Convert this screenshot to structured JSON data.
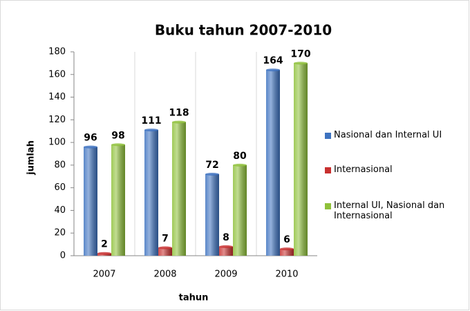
{
  "chart_data": {
    "type": "bar",
    "title": "Buku tahun 2007-2010",
    "x_label": "tahun",
    "y_label": "jumlah",
    "categories": [
      "2007",
      "2008",
      "2009",
      "2010"
    ],
    "series": [
      {
        "name": "Nasional dan Internal UI",
        "color": "#3d72c0",
        "values": [
          96,
          111,
          72,
          164
        ]
      },
      {
        "name": "Internasional",
        "color": "#c8302f",
        "values": [
          2,
          7,
          8,
          6
        ]
      },
      {
        "name": "Internal UI, Nasional dan Internasional",
        "color": "#8fc13a",
        "values": [
          98,
          118,
          80,
          170
        ]
      }
    ],
    "ylim": [
      0,
      180
    ],
    "yticks": [
      0,
      20,
      40,
      60,
      80,
      100,
      120,
      140,
      160,
      180
    ],
    "grid": false,
    "legend": "right"
  }
}
